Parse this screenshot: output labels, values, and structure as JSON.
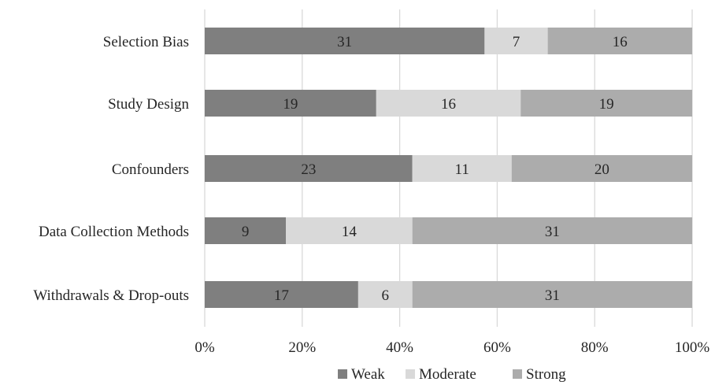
{
  "chart_data": {
    "type": "bar",
    "orientation": "horizontal",
    "stacked": "percent",
    "categories": [
      "Selection Bias",
      "Study Design",
      "Confounders",
      "Data Collection Methods",
      "Withdrawals & Drop-outs"
    ],
    "series": [
      {
        "name": "Weak",
        "color": "#7f7f7f",
        "values": [
          31,
          19,
          23,
          9,
          17
        ]
      },
      {
        "name": "Moderate",
        "color": "#d9d9d9",
        "values": [
          7,
          16,
          11,
          14,
          6
        ]
      },
      {
        "name": "Strong",
        "color": "#acacac",
        "values": [
          16,
          19,
          20,
          31,
          31
        ]
      }
    ],
    "x_ticks": [
      "0%",
      "20%",
      "40%",
      "60%",
      "80%",
      "100%"
    ],
    "xlim": [
      0,
      100
    ],
    "grid": true,
    "legend_position": "bottom",
    "show_data_labels": true
  }
}
